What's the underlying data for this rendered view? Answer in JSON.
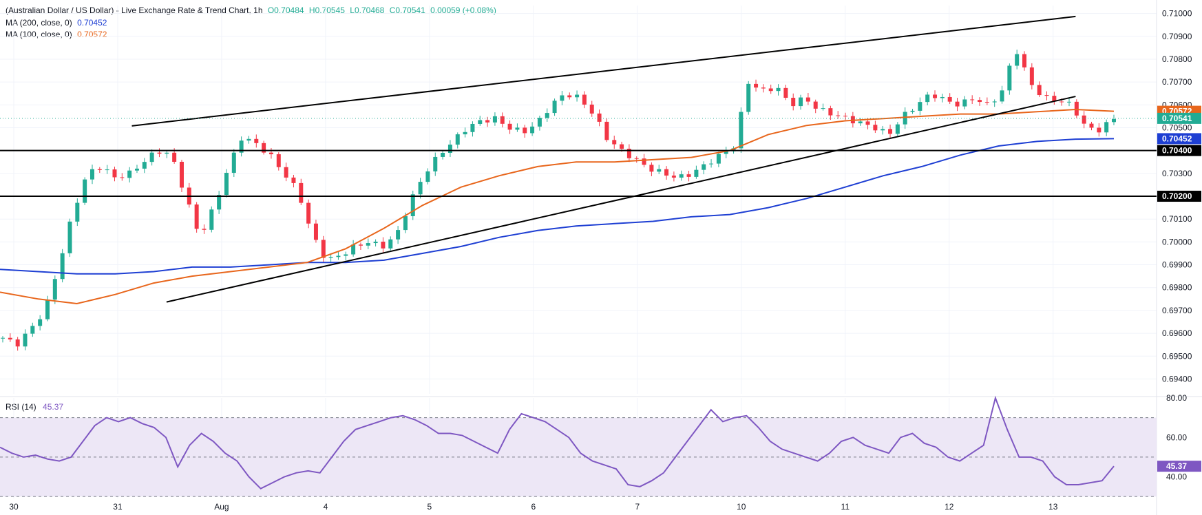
{
  "header": {
    "line1": {
      "title": "(Australian Dollar / US Dollar) - Live Exchange Rate & Trend Chart, 1h",
      "open": "O0.70484",
      "high": "H0.70545",
      "low": "L0.70468",
      "close": "C0.70541",
      "change": "0.00059 (+0.08%)"
    },
    "ma200": {
      "label": "MA (200, close, 0)",
      "value": "0.70452",
      "color": "#1e3fd3"
    },
    "ma100": {
      "label": "MA (100, close, 0)",
      "value": "0.70572",
      "color": "#e8661c"
    }
  },
  "rsi_header": {
    "label": "RSI (14)",
    "value": "45.37"
  },
  "colors": {
    "up": "#22ab94",
    "down": "#f23645",
    "ma200": "#1e3fd3",
    "ma100": "#e8661c",
    "rsi": "#7e57c2",
    "rsi_band": "#ede7f6",
    "level_line": "#000000",
    "trend_line": "#000000",
    "current_price": "#22ab94"
  },
  "chart_data": [
    {
      "type": "candlestick",
      "pair": "AUD/USD",
      "timeframe": "1h",
      "y_ticks": [
        "0.69400",
        "0.69500",
        "0.69600",
        "0.69700",
        "0.69800",
        "0.69900",
        "0.70000",
        "0.70100",
        "0.70200",
        "0.70300",
        "0.70400",
        "0.70500",
        "0.70600",
        "0.70700",
        "0.70800",
        "0.70900",
        "0.71000"
      ],
      "x_labels": [
        "30",
        "31",
        "Aug",
        "4",
        "5",
        "6",
        "7",
        "10",
        "11",
        "12",
        "13"
      ],
      "ylim": [
        0.69335,
        0.71035
      ],
      "price_labels": [
        {
          "value": 0.70572,
          "text": "0.70572",
          "color": "#e8661c"
        },
        {
          "value": 0.70541,
          "text": "0.70541",
          "color": "#22ab94"
        },
        {
          "value": 0.70452,
          "text": "0.70452",
          "color": "#1e3fd3"
        },
        {
          "value": 0.704,
          "text": "0.70400",
          "color": "#000000"
        },
        {
          "value": 0.702,
          "text": "0.70200",
          "color": "#000000"
        }
      ],
      "horizontal_levels": [
        0.704,
        0.702
      ],
      "trend_lines": [
        {
          "from": [
            0.114,
            0.70508
          ],
          "to": [
            0.93,
            0.70987
          ]
        },
        {
          "from": [
            0.144,
            0.69737
          ],
          "to": [
            0.93,
            0.70637
          ]
        }
      ],
      "series": [
        {
          "name": "MA (200, close, 0)",
          "values": [
            0.6988,
            0.6987,
            0.6986,
            0.6986,
            0.6987,
            0.6989,
            0.6989,
            0.699,
            0.6991,
            0.6991,
            0.6992,
            0.6995,
            0.6998,
            0.7002,
            0.7005,
            0.7007,
            0.7008,
            0.7009,
            0.7011,
            0.7012,
            0.7015,
            0.7019,
            0.7024,
            0.7029,
            0.7033,
            0.7038,
            0.7042,
            0.7044,
            0.7045,
            0.70452
          ]
        },
        {
          "name": "MA (100, close, 0)",
          "values": [
            0.6978,
            0.6975,
            0.6973,
            0.6977,
            0.6982,
            0.6985,
            0.6987,
            0.6989,
            0.6991,
            0.6997,
            0.7006,
            0.7016,
            0.7024,
            0.7029,
            0.7033,
            0.7035,
            0.7035,
            0.7036,
            0.7037,
            0.704,
            0.7047,
            0.7051,
            0.7053,
            0.7054,
            0.7055,
            0.7056,
            0.7056,
            0.7057,
            0.7058,
            0.70572
          ]
        }
      ],
      "close_path": [
        0.6958,
        0.6955,
        0.6962,
        0.697,
        0.699,
        0.7013,
        0.703,
        0.7033,
        0.7028,
        0.703,
        0.7035,
        0.704,
        0.7038,
        0.702,
        0.7002,
        0.7015,
        0.7032,
        0.7046,
        0.7043,
        0.7038,
        0.703,
        0.7022,
        0.7003,
        0.6992,
        0.6994,
        0.6998,
        0.7,
        0.6998,
        0.7003,
        0.7018,
        0.703,
        0.7038,
        0.7044,
        0.705,
        0.7053,
        0.7054,
        0.705,
        0.7048,
        0.7052,
        0.706,
        0.7065,
        0.7063,
        0.7056,
        0.7045,
        0.704,
        0.7036,
        0.7032,
        0.703,
        0.7028,
        0.703,
        0.7034,
        0.7038,
        0.7042,
        0.707,
        0.7066,
        0.7068,
        0.706,
        0.7063,
        0.7058,
        0.7056,
        0.7054,
        0.7052,
        0.705,
        0.7047,
        0.7055,
        0.706,
        0.7065,
        0.7062,
        0.706,
        0.7063,
        0.706,
        0.7065,
        0.7085,
        0.707,
        0.7063,
        0.7062,
        0.706,
        0.705,
        0.7049,
        0.70541
      ]
    },
    {
      "type": "line",
      "name": "RSI (14)",
      "ylim": [
        29,
        80
      ],
      "y_ticks": [
        "40.00",
        "60.00",
        "80.00"
      ],
      "band": [
        30,
        70
      ],
      "midline": 50,
      "values": [
        55,
        52,
        50,
        51,
        49,
        48,
        50,
        58,
        66,
        70,
        68,
        70,
        67,
        65,
        60,
        45,
        56,
        62,
        58,
        52,
        48,
        40,
        34,
        37,
        40,
        42,
        43,
        42,
        50,
        58,
        64,
        66,
        68,
        70,
        71,
        69,
        66,
        62,
        62,
        61,
        58,
        55,
        52,
        64,
        72,
        70,
        68,
        64,
        60,
        52,
        48,
        46,
        44,
        36,
        35,
        38,
        42,
        50,
        58,
        66,
        74,
        68,
        70,
        71,
        65,
        58,
        54,
        52,
        50,
        48,
        52,
        58,
        60,
        56,
        54,
        52,
        60,
        62,
        57,
        55,
        50,
        48,
        52,
        56,
        80,
        64,
        50,
        50,
        48,
        40,
        36,
        36,
        37,
        38,
        45.37
      ]
    }
  ]
}
